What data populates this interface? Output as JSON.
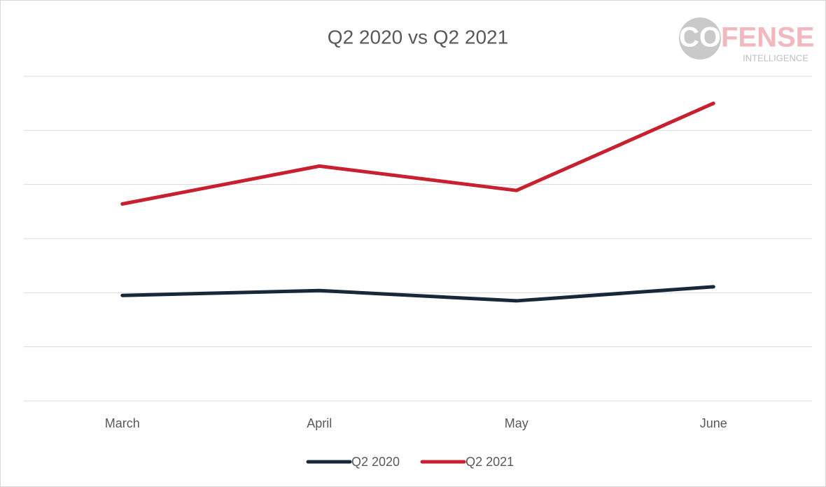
{
  "chart_data": {
    "type": "line",
    "title": "Q2 2020 vs Q2 2021",
    "categories": [
      "March",
      "April",
      "May",
      "June"
    ],
    "series": [
      {
        "name": "Q2 2020",
        "color": "#17283a",
        "values": [
          1.95,
          2.04,
          1.85,
          2.11
        ]
      },
      {
        "name": "Q2 2021",
        "color": "#c8202f",
        "values": [
          3.64,
          4.34,
          3.89,
          5.5
        ]
      }
    ],
    "ylim": [
      0,
      6
    ],
    "yticks": [
      0,
      1,
      2,
      3,
      4,
      5,
      6
    ],
    "grid": true,
    "legend": "bottom"
  },
  "logo": {
    "part1": "CO",
    "part2": "FENSE",
    "subtitle": "INTELLIGENCE"
  }
}
